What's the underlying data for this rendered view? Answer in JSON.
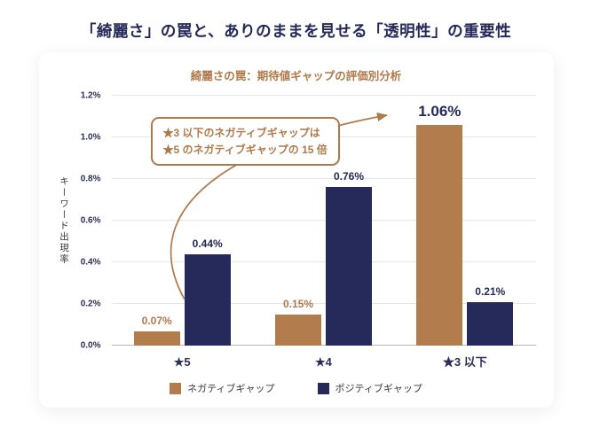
{
  "page_title": "「綺麗さ」の罠と、ありのままを見せる「透明性」の重要性",
  "chart_data": {
    "type": "bar",
    "title": "綺麗さの罠：期待値ギャップの評価別分析",
    "ylabel": "キーワード出現率",
    "categories": [
      "★5",
      "★4",
      "★3 以下"
    ],
    "series": [
      {
        "name": "ネガティブギャップ",
        "color": "#b27c4d",
        "values": [
          0.07,
          0.15,
          1.06
        ]
      },
      {
        "name": "ポジティブギャップ",
        "color": "#262a5b",
        "values": [
          0.44,
          0.76,
          0.21
        ]
      }
    ],
    "value_labels": [
      [
        "0.07%",
        "0.15%",
        "1.06%"
      ],
      [
        "0.44%",
        "0.76%",
        "0.21%"
      ]
    ],
    "value_label_colors": [
      [
        "#b0794a",
        "#b0794a",
        "#24295a"
      ],
      [
        "#24295a",
        "#24295a",
        "#24295a"
      ]
    ],
    "value_label_sizes": [
      [
        12,
        12,
        17
      ],
      [
        12,
        12,
        12
      ]
    ],
    "ylim": [
      0,
      1.2
    ],
    "yticks": [
      "0.0%",
      "0.2%",
      "0.4%",
      "0.6%",
      "0.8%",
      "1.0%",
      "1.2%"
    ],
    "grid": true,
    "legend_position": "bottom",
    "annotation_line1": "★3 以下のネガティブギャップは",
    "annotation_line2": "★5 のネガティブギャップの 15 倍"
  },
  "colors": {
    "title": "#24295a",
    "subtitle": "#b0794a",
    "negative": "#b27c4d",
    "positive": "#262a5b",
    "annotation": "#b0794a"
  }
}
